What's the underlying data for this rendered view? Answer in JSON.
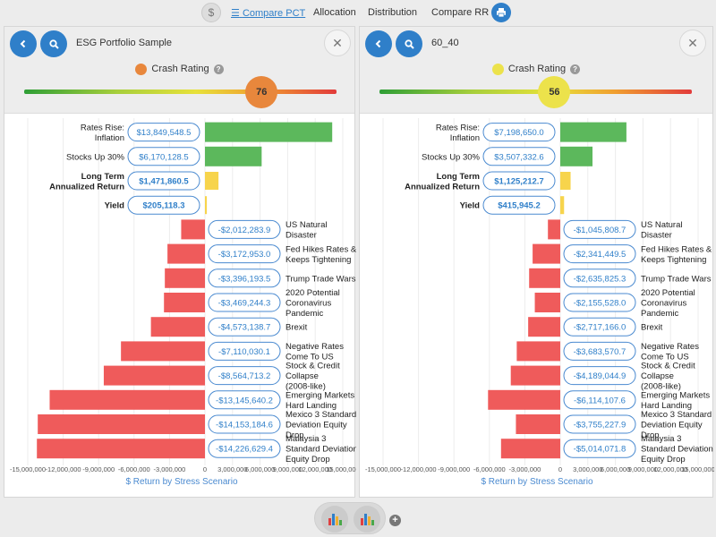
{
  "toolbar": {
    "dollar": "$",
    "compare_pct": "Compare PCT",
    "allocation": "Allocation",
    "distribution": "Distribution",
    "compare_rr": "Compare RR",
    "print_icon": "print-icon"
  },
  "crash_rating_label": "Crash Rating",
  "chart_data": [
    {
      "type": "bar",
      "orientation": "horizontal",
      "portfolio": "ESG Portfolio Sample",
      "crash_rating": 76,
      "crash_color": "#e8873c",
      "xlabel": "$ Return by Stress Scenario",
      "xlim": [
        -15000000,
        15000000
      ],
      "x_ticks": [
        "-15,000,000",
        "-12,000,000",
        "-9,000,000",
        "-6,000,000",
        "-3,000,000",
        "0",
        "3,000,000",
        "6,000,000",
        "9,000,000",
        "12,000,000",
        "15,000,000"
      ],
      "categories": [
        "Rates Rise: Inflation",
        "Stocks Up 30%",
        "Long Term Annualized Return",
        "Yield",
        "US Natural Disaster",
        "Fed Hikes Rates & Keeps Tightening",
        "Trump Trade Wars",
        "2020 Potential Coronavirus Pandemic",
        "Brexit",
        "Negative Rates Come To US",
        "Stock & Credit Collapse (2008-like)",
        "Emerging Markets Hard Landing",
        "Mexico 3 Standard Deviation Equity Drop",
        "Malaysia 3 Standard Deviation Equity Drop"
      ],
      "labels": [
        "$13,849,548.5",
        "$6,170,128.5",
        "$1,471,860.5",
        "$205,118.3",
        "-$2,012,283.9",
        "-$3,172,953.0",
        "-$3,396,193.5",
        "-$3,469,244.3",
        "-$4,573,138.7",
        "-$7,110,030.1",
        "-$8,564,713.2",
        "-$13,145,640.2",
        "-$14,153,184.6",
        "-$14,226,629.4"
      ],
      "values": [
        13849548.5,
        6170128.5,
        1471860.5,
        205118.3,
        -2012283.9,
        -3172953.0,
        -3396193.5,
        -3469244.3,
        -4573138.7,
        -7110030.1,
        -8564713.2,
        -13145640.2,
        -14153184.6,
        -14226629.4
      ]
    },
    {
      "type": "bar",
      "orientation": "horizontal",
      "portfolio": "60_40",
      "crash_rating": 56,
      "crash_color": "#ece24b",
      "xlabel": "$ Return by Stress Scenario",
      "xlim": [
        -15000000,
        15000000
      ],
      "x_ticks": [
        "-15,000,000",
        "-12,000,000",
        "-9,000,000",
        "-6,000,000",
        "-3,000,000",
        "0",
        "3,000,000",
        "6,000,000",
        "9,000,000",
        "12,000,000",
        "15,000,000"
      ],
      "categories": [
        "Rates Rise: Inflation",
        "Stocks Up 30%",
        "Long Term Annualized Return",
        "Yield",
        "US Natural Disaster",
        "Fed Hikes Rates & Keeps Tightening",
        "Trump Trade Wars",
        "2020 Potential Coronavirus Pandemic",
        "Brexit",
        "Negative Rates Come To US",
        "Stock & Credit Collapse (2008-like)",
        "Emerging Markets Hard Landing",
        "Mexico 3 Standard Deviation Equity Drop",
        "Malaysia 3 Standard Deviation Equity Drop"
      ],
      "labels": [
        "$7,198,650.0",
        "$3,507,332.6",
        "$1,125,212.7",
        "$415,945.2",
        "-$1,045,808.7",
        "-$2,341,449.5",
        "-$2,635,825.3",
        "-$2,155,528.0",
        "-$2,717,166.0",
        "-$3,683,570.7",
        "-$4,189,044.9",
        "-$6,114,107.6",
        "-$3,755,227.9",
        "-$5,014,071.8"
      ],
      "values": [
        7198650.0,
        3507332.6,
        1125212.7,
        415945.2,
        -1045808.7,
        -2341449.5,
        -2635825.3,
        -2155528.0,
        -2717166.0,
        -3683570.7,
        -4189044.9,
        -6114107.6,
        -3755227.9,
        -5014071.8
      ]
    }
  ],
  "colors": {
    "positive": "#5cb85c",
    "highlight": "#f7d44c",
    "negative": "#ef5b5b",
    "accent": "#2f7fc9"
  }
}
